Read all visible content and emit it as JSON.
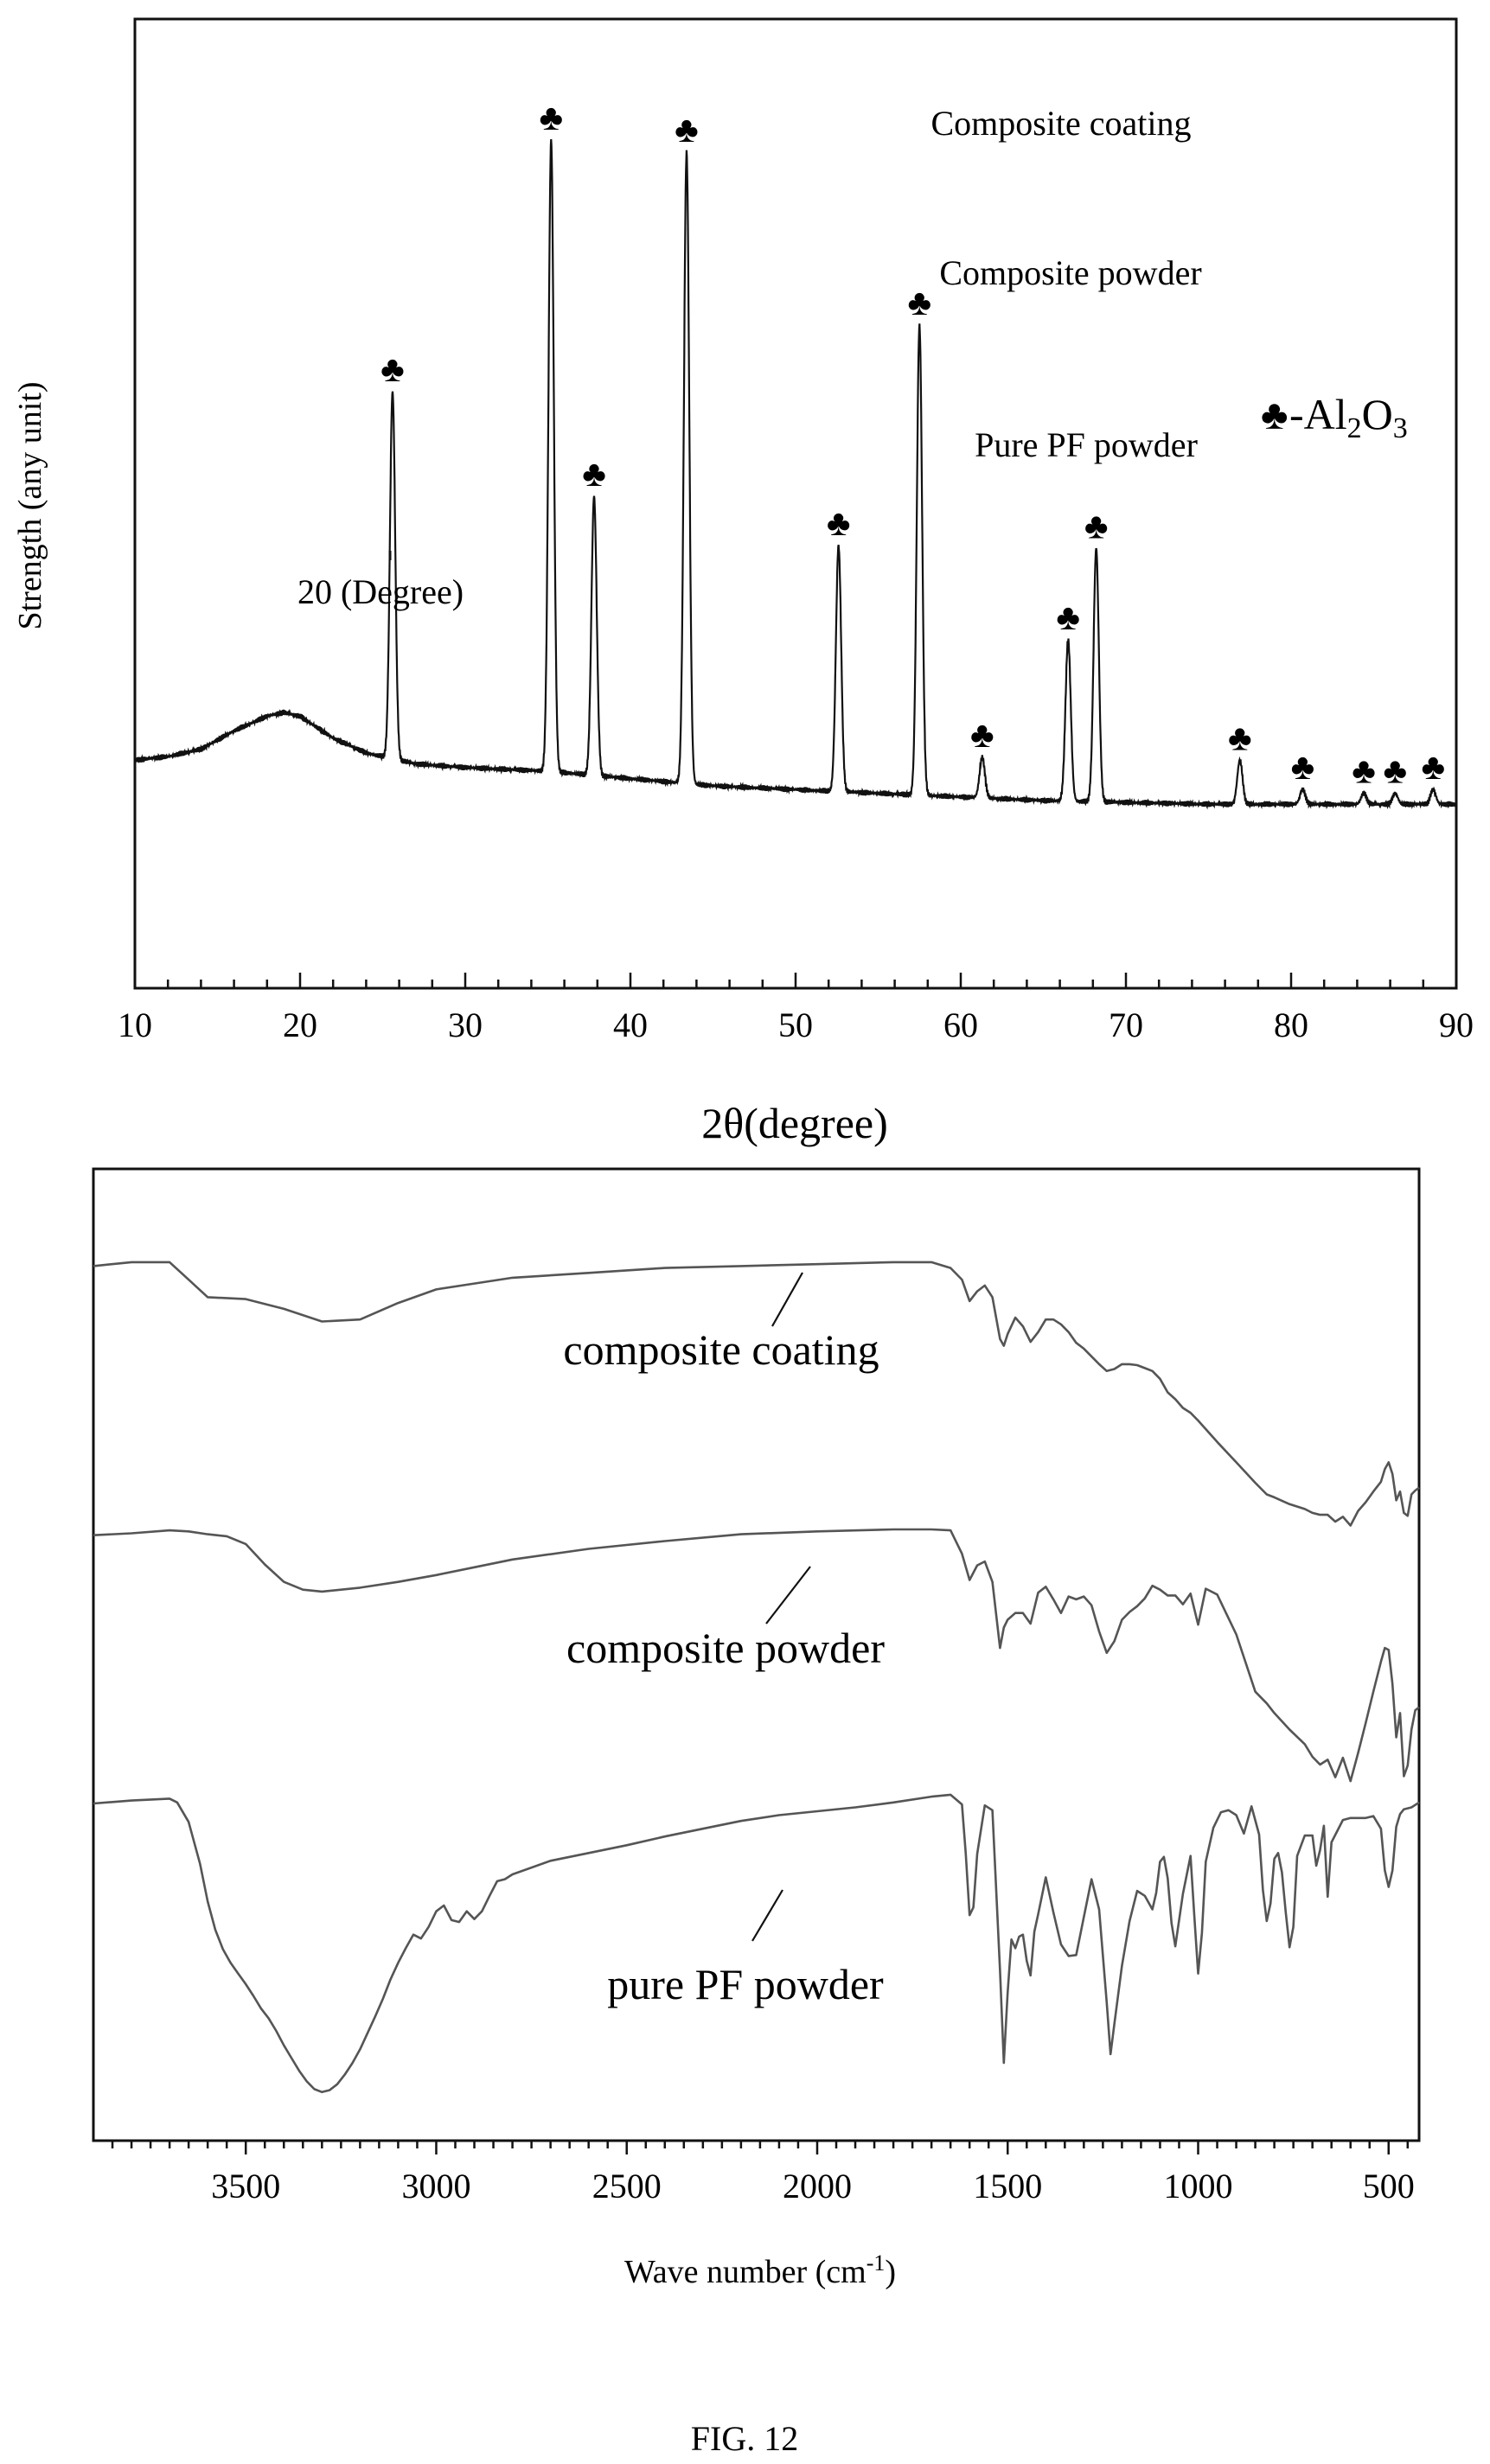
{
  "figure_label": "FIG. 12",
  "colors": {
    "xrd_line": "#111111",
    "ftir_line": "#555555",
    "axis": "#111111",
    "background": "#ffffff"
  },
  "chart_data": [
    {
      "type": "line",
      "xlabel": "2θ(degree)",
      "ylabel": "Strength (any unit)",
      "xlim": [
        10,
        90
      ],
      "xticks": [
        10,
        20,
        30,
        40,
        50,
        60,
        70,
        80,
        90
      ],
      "y_axis_ticks": false,
      "grid": false,
      "legend": "top-right",
      "legend_text": {
        "symbol": "♣",
        "prefix": "-Al",
        "sub1": "2",
        "mid": "O",
        "sub2": "3"
      },
      "annotations": [
        "Composite coating",
        "Composite powder",
        "Pure PF powder",
        "20 (Degree)"
      ],
      "marker_symbol": "♣",
      "peaks": [
        {
          "x": 25.6,
          "y": 100
        },
        {
          "x": 35.2,
          "y": 172
        },
        {
          "x": 37.8,
          "y": 76
        },
        {
          "x": 43.4,
          "y": 172
        },
        {
          "x": 52.6,
          "y": 67
        },
        {
          "x": 57.5,
          "y": 128
        },
        {
          "x": 61.3,
          "y": 11
        },
        {
          "x": 66.5,
          "y": 44
        },
        {
          "x": 68.2,
          "y": 69
        },
        {
          "x": 76.9,
          "y": 12
        },
        {
          "x": 80.7,
          "y": 4
        },
        {
          "x": 84.4,
          "y": 3
        },
        {
          "x": 86.3,
          "y": 3
        },
        {
          "x": 88.6,
          "y": 4
        }
      ],
      "baseline": [
        [
          10,
          12
        ],
        [
          12,
          13
        ],
        [
          14,
          15
        ],
        [
          16,
          20
        ],
        [
          18,
          24
        ],
        [
          19,
          25
        ],
        [
          20,
          24
        ],
        [
          22,
          18
        ],
        [
          24,
          14
        ],
        [
          27,
          11
        ],
        [
          30,
          10
        ],
        [
          35,
          9
        ],
        [
          40,
          7
        ],
        [
          45,
          5
        ],
        [
          50,
          4
        ],
        [
          55,
          3
        ],
        [
          60,
          2
        ],
        [
          65,
          1
        ],
        [
          70,
          0.5
        ],
        [
          75,
          0
        ],
        [
          80,
          0
        ],
        [
          85,
          0
        ],
        [
          90,
          0
        ]
      ],
      "ylim": [
        -40,
        205
      ]
    },
    {
      "type": "line",
      "xlabel": "Wave number (cm",
      "xlabel_sup": "-1",
      "xlabel_end": ")",
      "xlim": [
        3900,
        420
      ],
      "xticks": [
        3500,
        3000,
        2500,
        2000,
        1500,
        1000,
        500
      ],
      "y_axis_ticks": false,
      "grid": false,
      "ylim": [
        0,
        100
      ],
      "series": [
        {
          "name": "composite coating",
          "x": [
            3900,
            3800,
            3700,
            3650,
            3600,
            3500,
            3400,
            3300,
            3200,
            3100,
            3000,
            2900,
            2800,
            2600,
            2400,
            2200,
            2000,
            1800,
            1700,
            1650,
            1620,
            1600,
            1580,
            1560,
            1540,
            1520,
            1510,
            1500,
            1480,
            1460,
            1440,
            1420,
            1400,
            1380,
            1360,
            1340,
            1320,
            1300,
            1280,
            1260,
            1240,
            1220,
            1200,
            1180,
            1160,
            1140,
            1120,
            1100,
            1080,
            1060,
            1040,
            1020,
            1000,
            950,
            900,
            850,
            820,
            800,
            760,
            720,
            700,
            680,
            660,
            640,
            620,
            600,
            580,
            560,
            540,
            520,
            510,
            500,
            490,
            480,
            470,
            460,
            450,
            440,
            430,
            420
          ],
          "y": [
            90.0,
            90.4,
            90.4,
            88.6,
            86.8,
            86.6,
            85.6,
            84.3,
            84.5,
            86.2,
            87.6,
            88.2,
            88.8,
            89.3,
            89.8,
            90.0,
            90.2,
            90.4,
            90.4,
            89.8,
            88.6,
            86.4,
            87.4,
            88.0,
            86.8,
            82.5,
            81.8,
            83.0,
            84.7,
            83.8,
            82.2,
            83.2,
            84.5,
            84.5,
            84.0,
            83.2,
            82.1,
            81.5,
            80.7,
            79.9,
            79.2,
            79.4,
            79.9,
            79.9,
            79.8,
            79.5,
            79.2,
            78.4,
            77.0,
            76.3,
            75.4,
            74.9,
            74.1,
            71.9,
            69.8,
            67.7,
            66.5,
            66.2,
            65.5,
            65.0,
            64.6,
            64.4,
            64.4,
            63.7,
            64.2,
            63.3,
            64.8,
            65.7,
            66.8,
            67.8,
            69.1,
            69.8,
            68.6,
            65.9,
            66.8,
            64.6,
            64.3,
            66.5,
            66.9,
            67.2
          ]
        },
        {
          "name": "composite powder",
          "x": [
            3900,
            3800,
            3700,
            3650,
            3600,
            3550,
            3500,
            3450,
            3400,
            3350,
            3300,
            3200,
            3100,
            3000,
            2900,
            2800,
            2600,
            2400,
            2200,
            2000,
            1800,
            1700,
            1650,
            1620,
            1600,
            1580,
            1560,
            1540,
            1520,
            1510,
            1500,
            1480,
            1460,
            1440,
            1420,
            1400,
            1380,
            1360,
            1340,
            1320,
            1300,
            1280,
            1260,
            1240,
            1220,
            1200,
            1180,
            1160,
            1140,
            1120,
            1100,
            1080,
            1060,
            1040,
            1020,
            1000,
            980,
            950,
            900,
            850,
            820,
            800,
            760,
            720,
            700,
            680,
            660,
            640,
            620,
            600,
            580,
            560,
            540,
            520,
            510,
            500,
            490,
            480,
            470,
            460,
            450,
            440,
            430,
            420
          ],
          "y": [
            62.3,
            62.5,
            62.8,
            62.7,
            62.4,
            62.2,
            61.4,
            59.3,
            57.5,
            56.7,
            56.5,
            56.9,
            57.5,
            58.2,
            59.0,
            59.8,
            60.9,
            61.7,
            62.4,
            62.7,
            62.9,
            62.9,
            62.8,
            60.4,
            57.7,
            59.2,
            59.6,
            57.5,
            50.7,
            52.8,
            53.6,
            54.3,
            54.3,
            53.2,
            56.4,
            57.0,
            55.7,
            54.3,
            56.0,
            55.7,
            56.0,
            55.1,
            52.4,
            50.2,
            51.4,
            53.6,
            54.4,
            55.0,
            55.8,
            57.1,
            56.7,
            56.1,
            56.1,
            55.2,
            56.3,
            53.1,
            56.8,
            56.2,
            52.1,
            46.2,
            45.0,
            44.0,
            42.3,
            40.8,
            39.5,
            38.7,
            39.2,
            37.4,
            39.4,
            37.0,
            39.9,
            43.0,
            46.2,
            49.3,
            50.7,
            50.5,
            47.0,
            41.5,
            44.0,
            37.5,
            38.6,
            42.3,
            44.3,
            44.6
          ]
        },
        {
          "name": "pure PF powder",
          "x": [
            3900,
            3800,
            3700,
            3680,
            3650,
            3620,
            3600,
            3580,
            3560,
            3540,
            3520,
            3500,
            3480,
            3460,
            3440,
            3420,
            3400,
            3380,
            3360,
            3340,
            3320,
            3300,
            3280,
            3260,
            3240,
            3220,
            3200,
            3180,
            3160,
            3140,
            3120,
            3100,
            3080,
            3060,
            3040,
            3020,
            3000,
            2980,
            2960,
            2940,
            2920,
            2900,
            2880,
            2860,
            2840,
            2820,
            2800,
            2700,
            2600,
            2500,
            2400,
            2300,
            2200,
            2100,
            2000,
            1900,
            1800,
            1700,
            1650,
            1620,
            1610,
            1600,
            1590,
            1580,
            1560,
            1540,
            1520,
            1510,
            1500,
            1490,
            1480,
            1470,
            1460,
            1450,
            1440,
            1430,
            1420,
            1400,
            1380,
            1360,
            1340,
            1320,
            1300,
            1280,
            1260,
            1240,
            1230,
            1220,
            1200,
            1180,
            1160,
            1140,
            1120,
            1110,
            1100,
            1090,
            1080,
            1070,
            1060,
            1040,
            1020,
            1010,
            1000,
            990,
            980,
            960,
            940,
            920,
            900,
            880,
            860,
            840,
            830,
            820,
            810,
            800,
            790,
            780,
            770,
            760,
            750,
            740,
            720,
            700,
            690,
            680,
            670,
            660,
            650,
            620,
            600,
            560,
            540,
            520,
            510,
            500,
            490,
            480,
            470,
            460,
            440,
            420
          ],
          "y": [
            34.7,
            35.0,
            35.2,
            34.8,
            32.8,
            28.5,
            24.6,
            21.7,
            19.7,
            18.3,
            17.2,
            16.1,
            14.9,
            13.6,
            12.6,
            11.3,
            9.8,
            8.5,
            7.2,
            6.1,
            5.3,
            5.0,
            5.2,
            5.8,
            6.8,
            8.0,
            9.4,
            11.1,
            12.8,
            14.6,
            16.6,
            18.3,
            19.8,
            21.2,
            20.8,
            22.0,
            23.6,
            24.2,
            22.7,
            22.5,
            23.6,
            22.8,
            23.6,
            25.2,
            26.7,
            26.9,
            27.4,
            28.8,
            29.6,
            30.4,
            31.3,
            32.1,
            32.9,
            33.5,
            33.9,
            34.3,
            34.8,
            35.4,
            35.6,
            34.6,
            29.5,
            23.2,
            24.0,
            29.5,
            34.5,
            34.0,
            17.5,
            8.0,
            15.2,
            20.7,
            19.8,
            21.0,
            21.2,
            18.5,
            17.0,
            21.5,
            23.3,
            27.1,
            23.5,
            20.2,
            19.0,
            19.1,
            23.0,
            26.9,
            23.8,
            14.2,
            8.9,
            12.0,
            18.0,
            22.6,
            25.7,
            25.2,
            23.8,
            25.5,
            28.7,
            29.2,
            27.0,
            22.4,
            20.0,
            25.4,
            29.3,
            23.1,
            17.2,
            21.4,
            28.7,
            32.2,
            33.8,
            34.0,
            33.5,
            31.6,
            34.4,
            31.5,
            25.8,
            22.6,
            24.4,
            29.0,
            29.6,
            27.6,
            23.5,
            19.9,
            22.0,
            29.3,
            31.4,
            31.4,
            28.3,
            29.9,
            32.4,
            25.1,
            30.7,
            33.0,
            33.2,
            33.2,
            33.4,
            32.1,
            27.8,
            26.1,
            27.8,
            32.3,
            33.6,
            34.1,
            34.3,
            34.8
          ]
        }
      ]
    }
  ]
}
